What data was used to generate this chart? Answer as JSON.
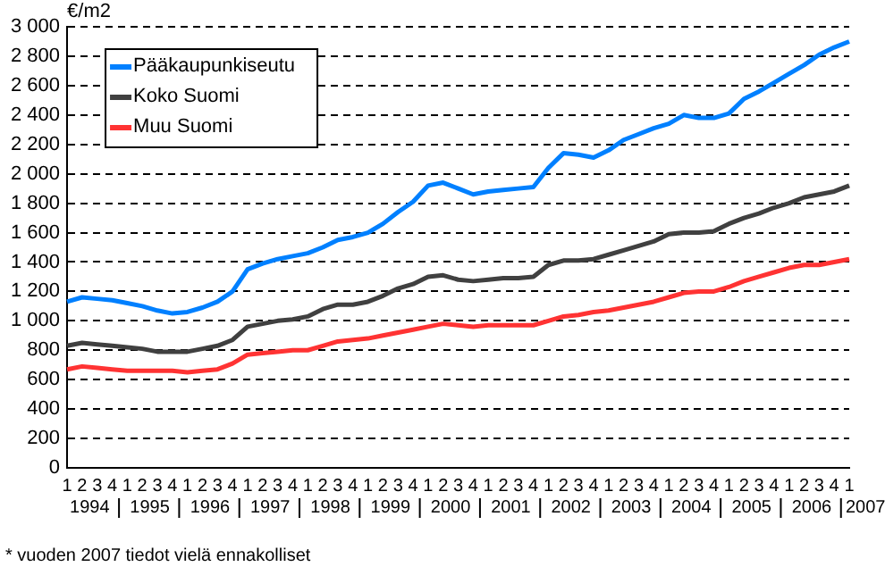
{
  "chart_data": {
    "type": "line",
    "ylabel": "€/m2",
    "categories": [
      "1",
      "2",
      "3",
      "4",
      "1",
      "2",
      "3",
      "4",
      "1",
      "2",
      "3",
      "4",
      "1",
      "2",
      "3",
      "4",
      "1",
      "2",
      "3",
      "4",
      "1",
      "2",
      "3",
      "4",
      "1",
      "2",
      "3",
      "4",
      "1",
      "2",
      "3",
      "4",
      "1",
      "2",
      "3",
      "4",
      "1",
      "2",
      "3",
      "4",
      "1",
      "2",
      "3",
      "4",
      "1",
      "2",
      "3",
      "4",
      "1",
      "2",
      "3",
      "4",
      "1"
    ],
    "series": [
      {
        "name": "Pääkaupunkiseutu",
        "color": "#0080ff",
        "values": [
          1130,
          1160,
          1150,
          1140,
          1120,
          1100,
          1070,
          1050,
          1060,
          1090,
          1130,
          1200,
          1350,
          1390,
          1420,
          1440,
          1460,
          1500,
          1550,
          1570,
          1600,
          1660,
          1740,
          1810,
          1920,
          1940,
          1900,
          1860,
          1880,
          1890,
          1900,
          1910,
          2040,
          2140,
          2130,
          2110,
          2160,
          2230,
          2270,
          2310,
          2340,
          2400,
          2380,
          2380,
          2410,
          2510,
          2560,
          2620,
          2680,
          2740,
          2810,
          2860,
          2900
        ]
      },
      {
        "name": "Koko Suomi",
        "color": "#404040",
        "values": [
          830,
          850,
          840,
          830,
          820,
          810,
          790,
          790,
          790,
          810,
          830,
          870,
          960,
          980,
          1000,
          1010,
          1030,
          1080,
          1110,
          1110,
          1130,
          1170,
          1220,
          1250,
          1300,
          1310,
          1280,
          1270,
          1280,
          1290,
          1290,
          1300,
          1380,
          1410,
          1410,
          1420,
          1450,
          1480,
          1510,
          1540,
          1590,
          1600,
          1600,
          1610,
          1660,
          1700,
          1730,
          1770,
          1800,
          1840,
          1860,
          1880,
          1920
        ]
      },
      {
        "name": "Muu Suomi",
        "color": "#ff3333",
        "values": [
          670,
          690,
          680,
          670,
          660,
          660,
          660,
          660,
          650,
          660,
          670,
          710,
          770,
          780,
          790,
          800,
          800,
          830,
          860,
          870,
          880,
          900,
          920,
          940,
          960,
          980,
          970,
          960,
          970,
          970,
          970,
          970,
          1000,
          1030,
          1040,
          1060,
          1070,
          1090,
          1110,
          1130,
          1160,
          1190,
          1200,
          1200,
          1230,
          1270,
          1300,
          1330,
          1360,
          1380,
          1380,
          1400,
          1420
        ]
      }
    ],
    "ylim": [
      0,
      3000
    ],
    "yticks": [
      0,
      200,
      400,
      600,
      800,
      {
        "value": 1000,
        "label": "1 000"
      },
      {
        "value": 1200,
        "label": "1 200"
      },
      {
        "value": 1400,
        "label": "1 400"
      },
      {
        "value": 1600,
        "label": "1 600"
      },
      {
        "value": 1800,
        "label": "1 800"
      },
      {
        "value": 2000,
        "label": "2 000"
      },
      {
        "value": 2200,
        "label": "2 200"
      },
      {
        "value": 2400,
        "label": "2 400"
      },
      {
        "value": 2600,
        "label": "2 600"
      },
      {
        "value": 2800,
        "label": "2 800"
      },
      {
        "value": 3000,
        "label": "3 000"
      }
    ],
    "grid": "y",
    "legend": "top left",
    "marker": "none",
    "line_style": "solid",
    "annotations": [
      "1994",
      "1995",
      "1996",
      "1997",
      "1998",
      "1999",
      "2000",
      "2001",
      "2002",
      "2003",
      "2004",
      "2005",
      "2006",
      "2007",
      "* vuoden 2007 tiedot vielä ennakolliset"
    ]
  }
}
